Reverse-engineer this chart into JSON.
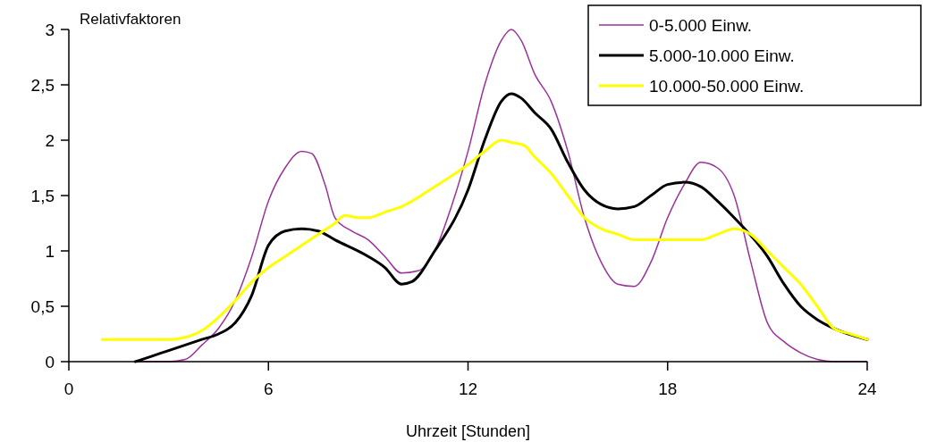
{
  "chart_data": {
    "type": "line",
    "ylabel": "Relativfaktoren",
    "xlabel": "Uhrzeit [Stunden]",
    "xlim": [
      0,
      24
    ],
    "xticks": [
      0,
      6,
      12,
      18,
      24
    ],
    "ylim": [
      0,
      3
    ],
    "yticks": [
      0,
      {
        "value": 0.5,
        "label": "0,5"
      },
      1,
      {
        "value": 1.5,
        "label": "1,5"
      },
      2,
      {
        "value": 2.5,
        "label": "2,5"
      },
      3
    ],
    "grid": false,
    "legend": "top right",
    "marker": "none",
    "line_style": "solid",
    "series": [
      {
        "name": "0-5.000 Einw.",
        "color": "#993399",
        "x": [
          2,
          3,
          3.5,
          4,
          4.5,
          5,
          5.5,
          6,
          6.5,
          7,
          7.3,
          7.7,
          8,
          8.5,
          9,
          9.5,
          10,
          10.5,
          11,
          11.5,
          12,
          12.5,
          13,
          13.3,
          13.6,
          14,
          14.5,
          15,
          15.5,
          16,
          16.5,
          17,
          17.5,
          18,
          18.5,
          19,
          19.5,
          20,
          20.5,
          21,
          21.5,
          22,
          22.5,
          23,
          24
        ],
        "values": [
          0,
          0,
          0.02,
          0.15,
          0.3,
          0.55,
          0.95,
          1.45,
          1.75,
          1.9,
          1.88,
          1.6,
          1.3,
          1.18,
          1.1,
          0.95,
          0.8,
          0.82,
          1.0,
          1.4,
          1.9,
          2.5,
          2.9,
          3.0,
          2.9,
          2.6,
          2.35,
          1.9,
          1.3,
          0.9,
          0.7,
          0.68,
          0.9,
          1.3,
          1.6,
          1.8,
          1.75,
          1.5,
          0.9,
          0.35,
          0.18,
          0.08,
          0.02,
          0,
          0
        ]
      },
      {
        "name": "5.000-10.000 Einw.",
        "color": "#000000",
        "x": [
          2,
          2.5,
          3,
          4,
          4.5,
          5,
          5.5,
          6,
          6.5,
          7,
          7.5,
          8,
          9,
          9.5,
          10,
          10.3,
          11,
          12,
          12.5,
          13,
          13.3,
          13.6,
          14,
          14.5,
          15,
          15.5,
          16,
          16.5,
          17,
          17.5,
          18,
          18.5,
          19,
          19.5,
          20,
          21,
          21.5,
          22,
          22.5,
          23,
          24
        ],
        "values": [
          0,
          0.05,
          0.1,
          0.2,
          0.25,
          0.35,
          0.6,
          1.05,
          1.18,
          1.2,
          1.18,
          1.1,
          0.95,
          0.85,
          0.7,
          0.72,
          1.0,
          1.55,
          2.0,
          2.35,
          2.42,
          2.38,
          2.25,
          2.1,
          1.8,
          1.55,
          1.42,
          1.38,
          1.4,
          1.5,
          1.6,
          1.62,
          1.58,
          1.45,
          1.3,
          0.95,
          0.7,
          0.5,
          0.38,
          0.3,
          0.2
        ]
      },
      {
        "name": "10.000-50.000 Einw.",
        "color": "#ffff00",
        "x": [
          1,
          2,
          3,
          3.5,
          4,
          4.5,
          5,
          5.5,
          6,
          6.5,
          7,
          7.5,
          8,
          8.3,
          8.7,
          9,
          9.5,
          10,
          11,
          12,
          12.5,
          13,
          13.3,
          13.7,
          14,
          14.5,
          15,
          15.5,
          16,
          16.5,
          17,
          18,
          19,
          19.5,
          20,
          20.5,
          21,
          21.5,
          22,
          22.5,
          23,
          23.5,
          24
        ],
        "values": [
          0.2,
          0.2,
          0.2,
          0.22,
          0.28,
          0.4,
          0.55,
          0.72,
          0.85,
          0.95,
          1.05,
          1.15,
          1.25,
          1.32,
          1.3,
          1.3,
          1.35,
          1.4,
          1.58,
          1.78,
          1.9,
          2.0,
          1.98,
          1.95,
          1.85,
          1.7,
          1.5,
          1.3,
          1.2,
          1.15,
          1.1,
          1.1,
          1.1,
          1.15,
          1.2,
          1.15,
          1.0,
          0.85,
          0.7,
          0.5,
          0.3,
          0.25,
          0.2
        ]
      }
    ]
  }
}
